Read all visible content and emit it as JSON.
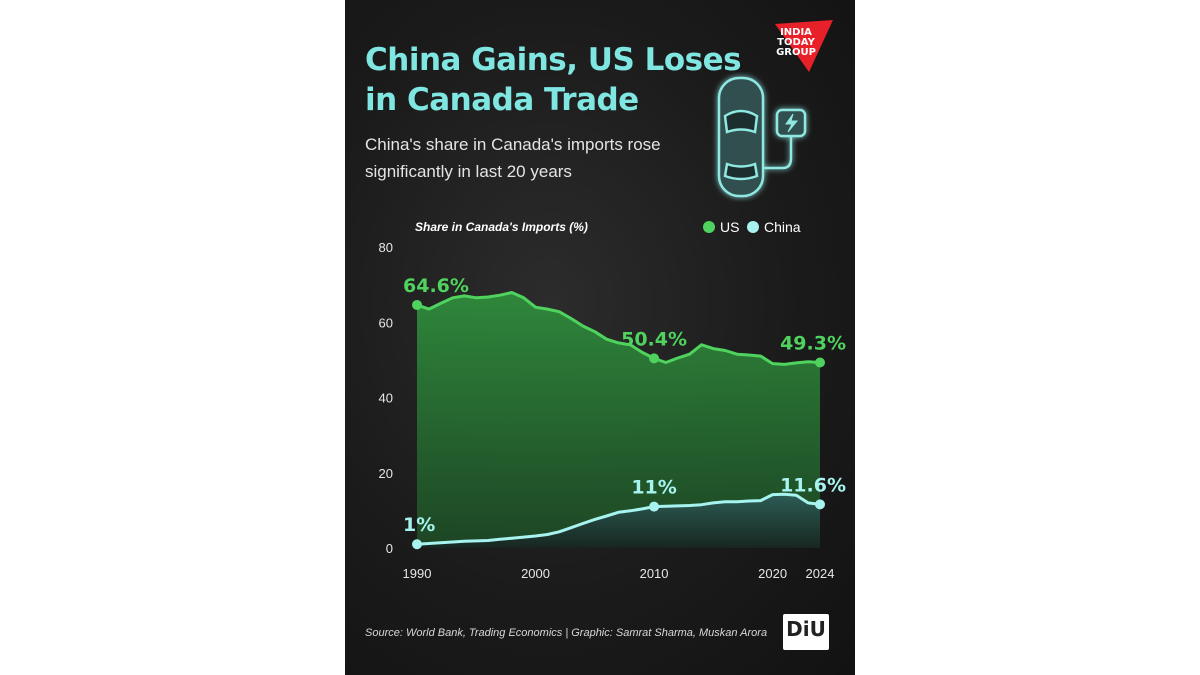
{
  "title_lines": [
    "China Gains, US Loses",
    "in Canada Trade"
  ],
  "subtitle": "China's share in Canada's imports rose significantly in last 20 years",
  "logo": {
    "lines": [
      "INDIA",
      "TODAY",
      "GROUP"
    ],
    "color": "#e8202a"
  },
  "source": "Source: World Bank, Trading Economics | Graphic: Samrat Sharma, Muskan Arora",
  "badge": "DiU",
  "colors": {
    "us": "#4fd35e",
    "china": "#a6f3ef",
    "title": "#7fe6e1",
    "background": "#1b1b1b"
  },
  "chart_data": {
    "type": "area",
    "ylabel": "Share in Canada's Imports (%)",
    "ylim": [
      0,
      80
    ],
    "yticks": [
      0,
      20,
      40,
      60,
      80
    ],
    "xlim": [
      1990,
      2024
    ],
    "xticks": [
      1990,
      2000,
      2010,
      2020,
      2024
    ],
    "legend_position": "top-right",
    "grid": false,
    "series": [
      {
        "name": "US",
        "color": "#4fd35e",
        "x": [
          1990,
          1991,
          1992,
          1993,
          1994,
          1995,
          1996,
          1997,
          1998,
          1999,
          2000,
          2001,
          2002,
          2003,
          2004,
          2005,
          2006,
          2007,
          2008,
          2009,
          2010,
          2011,
          2012,
          2013,
          2014,
          2015,
          2016,
          2017,
          2018,
          2019,
          2020,
          2021,
          2022,
          2023,
          2024
        ],
        "values": [
          64.6,
          63.5,
          65.0,
          66.5,
          67.0,
          66.5,
          66.7,
          67.2,
          67.9,
          66.5,
          64.0,
          63.5,
          62.8,
          61.0,
          59.0,
          57.5,
          55.5,
          54.5,
          54.0,
          52.0,
          50.4,
          49.3,
          50.5,
          51.5,
          54.0,
          53.0,
          52.5,
          51.5,
          51.3,
          51.0,
          49.0,
          48.8,
          49.2,
          49.5,
          49.3
        ],
        "annotations": [
          {
            "x": 1990,
            "value": 64.6,
            "label": "64.6%"
          },
          {
            "x": 2010,
            "value": 50.4,
            "label": "50.4%"
          },
          {
            "x": 2024,
            "value": 49.3,
            "label": "49.3%"
          }
        ]
      },
      {
        "name": "China",
        "color": "#a6f3ef",
        "x": [
          1990,
          1991,
          1992,
          1993,
          1994,
          1995,
          1996,
          1997,
          1998,
          1999,
          2000,
          2001,
          2002,
          2003,
          2004,
          2005,
          2006,
          2007,
          2008,
          2009,
          2010,
          2011,
          2012,
          2013,
          2014,
          2015,
          2016,
          2017,
          2018,
          2019,
          2020,
          2021,
          2022,
          2023,
          2024
        ],
        "values": [
          1.0,
          1.2,
          1.4,
          1.6,
          1.8,
          1.9,
          2.0,
          2.3,
          2.6,
          2.9,
          3.2,
          3.6,
          4.3,
          5.4,
          6.5,
          7.6,
          8.5,
          9.5,
          9.9,
          10.4,
          11.0,
          11.1,
          11.2,
          11.3,
          11.5,
          12.0,
          12.3,
          12.3,
          12.5,
          12.6,
          14.2,
          14.3,
          14.0,
          12.0,
          11.6
        ],
        "annotations": [
          {
            "x": 1990,
            "value": 1.0,
            "label": "1%"
          },
          {
            "x": 2010,
            "value": 11.0,
            "label": "11%"
          },
          {
            "x": 2024,
            "value": 11.6,
            "label": "11.6%"
          }
        ]
      }
    ]
  }
}
